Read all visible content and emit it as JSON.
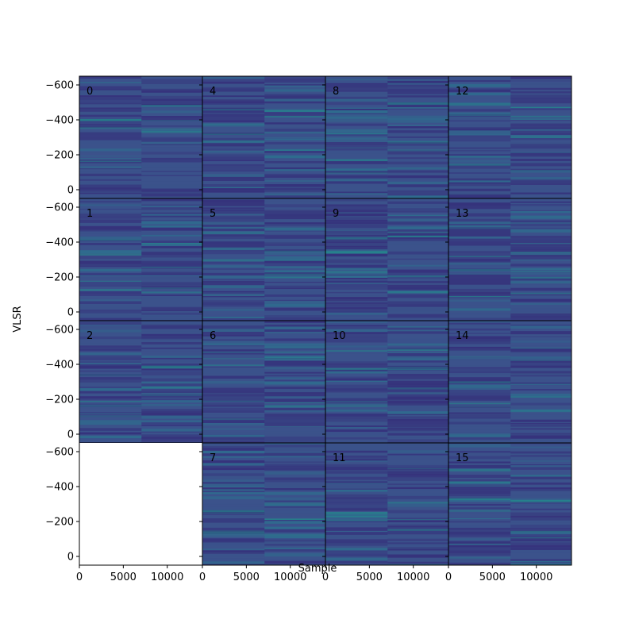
{
  "chart_data": {
    "type": "heatmap",
    "layout": "4x4 grid of waterfall image panels, column-major panel numbering",
    "xlabel": "Sample",
    "ylabel": "VLSR",
    "xlim": [
      0,
      14000
    ],
    "ylim": [
      -650,
      50
    ],
    "y_inverted": true,
    "x_ticks": [
      0,
      5000,
      10000
    ],
    "y_ticks": [
      -600,
      -400,
      -200,
      0
    ],
    "colormap": "viridis (dark blue dominated)",
    "colors": {
      "base": "#3b528b",
      "dark": "#352f7a",
      "mid": "#2e6e8e",
      "bright": "#21918c"
    },
    "panels": [
      {
        "label": "0",
        "row": 0,
        "col": 0,
        "empty": false
      },
      {
        "label": "1",
        "row": 1,
        "col": 0,
        "empty": false
      },
      {
        "label": "2",
        "row": 2,
        "col": 0,
        "empty": false
      },
      {
        "label": "",
        "row": 3,
        "col": 0,
        "empty": true
      },
      {
        "label": "4",
        "row": 0,
        "col": 1,
        "empty": false
      },
      {
        "label": "5",
        "row": 1,
        "col": 1,
        "empty": false
      },
      {
        "label": "6",
        "row": 2,
        "col": 1,
        "empty": false
      },
      {
        "label": "7",
        "row": 3,
        "col": 1,
        "empty": false
      },
      {
        "label": "8",
        "row": 0,
        "col": 2,
        "empty": false
      },
      {
        "label": "9",
        "row": 1,
        "col": 2,
        "empty": false
      },
      {
        "label": "10",
        "row": 2,
        "col": 2,
        "empty": false
      },
      {
        "label": "11",
        "row": 3,
        "col": 2,
        "empty": false
      },
      {
        "label": "12",
        "row": 0,
        "col": 3,
        "empty": false
      },
      {
        "label": "13",
        "row": 1,
        "col": 3,
        "empty": false
      },
      {
        "label": "14",
        "row": 2,
        "col": 3,
        "empty": false
      },
      {
        "label": "15",
        "row": 3,
        "col": 3,
        "empty": false
      }
    ]
  }
}
